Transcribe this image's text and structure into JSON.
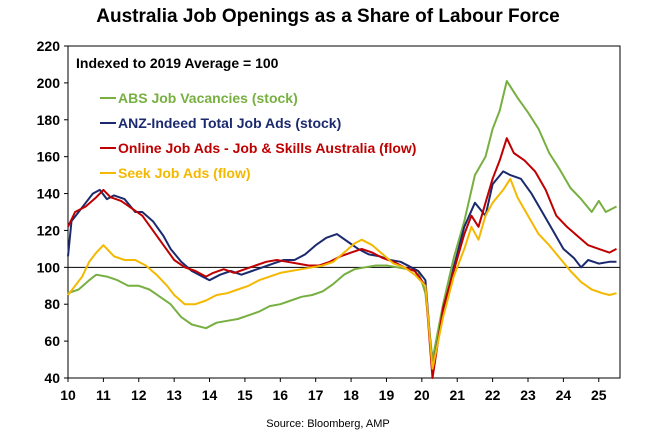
{
  "chart_data": {
    "type": "line",
    "title": "Australia Job Openings as a Share of Labour Force",
    "subtitle": "Indexed to 2019 Average = 100",
    "source": "Source: Bloomberg, AMP",
    "xlim": [
      2010,
      2025.6
    ],
    "ylim": [
      40,
      220
    ],
    "x_ticks": [
      10,
      11,
      12,
      13,
      14,
      15,
      16,
      17,
      18,
      19,
      20,
      21,
      22,
      23,
      24,
      25
    ],
    "y_ticks": [
      40,
      60,
      80,
      100,
      120,
      140,
      160,
      180,
      200,
      220
    ],
    "reference_line": 100,
    "legend_position": "top-left",
    "series": [
      {
        "name": "ABS Job Vacancies (stock)",
        "color": "#77b041",
        "points": [
          [
            2010.0,
            86
          ],
          [
            2010.3,
            88
          ],
          [
            2010.6,
            93
          ],
          [
            2010.8,
            96
          ],
          [
            2011.1,
            95
          ],
          [
            2011.4,
            93
          ],
          [
            2011.7,
            90
          ],
          [
            2012.0,
            90
          ],
          [
            2012.3,
            88
          ],
          [
            2012.6,
            84
          ],
          [
            2012.9,
            80
          ],
          [
            2013.2,
            73
          ],
          [
            2013.5,
            69
          ],
          [
            2013.9,
            67
          ],
          [
            2014.2,
            70
          ],
          [
            2014.5,
            71
          ],
          [
            2014.8,
            72
          ],
          [
            2015.1,
            74
          ],
          [
            2015.4,
            76
          ],
          [
            2015.7,
            79
          ],
          [
            2016.0,
            80
          ],
          [
            2016.3,
            82
          ],
          [
            2016.6,
            84
          ],
          [
            2016.9,
            85
          ],
          [
            2017.2,
            87
          ],
          [
            2017.5,
            91
          ],
          [
            2017.8,
            96
          ],
          [
            2018.1,
            99
          ],
          [
            2018.4,
            100
          ],
          [
            2018.7,
            101
          ],
          [
            2019.0,
            101
          ],
          [
            2019.3,
            100
          ],
          [
            2019.6,
            99
          ],
          [
            2019.9,
            98
          ],
          [
            2020.1,
            86
          ],
          [
            2020.3,
            50
          ],
          [
            2020.6,
            80
          ],
          [
            2020.9,
            105
          ],
          [
            2021.2,
            125
          ],
          [
            2021.5,
            150
          ],
          [
            2021.8,
            160
          ],
          [
            2022.0,
            175
          ],
          [
            2022.2,
            185
          ],
          [
            2022.4,
            201
          ],
          [
            2022.7,
            192
          ],
          [
            2023.0,
            184
          ],
          [
            2023.3,
            175
          ],
          [
            2023.6,
            162
          ],
          [
            2023.9,
            153
          ],
          [
            2024.2,
            143
          ],
          [
            2024.5,
            137
          ],
          [
            2024.8,
            130
          ],
          [
            2025.0,
            136
          ],
          [
            2025.2,
            130
          ],
          [
            2025.5,
            133
          ]
        ]
      },
      {
        "name": "ANZ-Indeed Total Job Ads (stock)",
        "color": "#1b2a6e",
        "points": [
          [
            2010.0,
            106
          ],
          [
            2010.1,
            125
          ],
          [
            2010.3,
            130
          ],
          [
            2010.5,
            135
          ],
          [
            2010.7,
            140
          ],
          [
            2010.9,
            142
          ],
          [
            2011.1,
            137
          ],
          [
            2011.3,
            139
          ],
          [
            2011.6,
            137
          ],
          [
            2011.9,
            130
          ],
          [
            2012.1,
            130
          ],
          [
            2012.4,
            125
          ],
          [
            2012.7,
            117
          ],
          [
            2012.9,
            110
          ],
          [
            2013.2,
            103
          ],
          [
            2013.5,
            98
          ],
          [
            2013.8,
            95
          ],
          [
            2014.0,
            93
          ],
          [
            2014.3,
            96
          ],
          [
            2014.6,
            98
          ],
          [
            2014.9,
            96
          ],
          [
            2015.2,
            98
          ],
          [
            2015.5,
            100
          ],
          [
            2015.8,
            102
          ],
          [
            2016.1,
            104
          ],
          [
            2016.4,
            104
          ],
          [
            2016.7,
            107
          ],
          [
            2017.0,
            112
          ],
          [
            2017.3,
            116
          ],
          [
            2017.6,
            118
          ],
          [
            2017.9,
            114
          ],
          [
            2018.2,
            110
          ],
          [
            2018.5,
            107
          ],
          [
            2018.8,
            106
          ],
          [
            2019.1,
            104
          ],
          [
            2019.4,
            103
          ],
          [
            2019.7,
            100
          ],
          [
            2019.9,
            98
          ],
          [
            2020.1,
            93
          ],
          [
            2020.3,
            45
          ],
          [
            2020.6,
            75
          ],
          [
            2020.9,
            100
          ],
          [
            2021.2,
            122
          ],
          [
            2021.5,
            135
          ],
          [
            2021.8,
            128
          ],
          [
            2022.0,
            145
          ],
          [
            2022.3,
            152
          ],
          [
            2022.5,
            150
          ],
          [
            2022.8,
            148
          ],
          [
            2023.1,
            140
          ],
          [
            2023.4,
            130
          ],
          [
            2023.7,
            120
          ],
          [
            2024.0,
            110
          ],
          [
            2024.3,
            105
          ],
          [
            2024.5,
            100
          ],
          [
            2024.7,
            104
          ],
          [
            2025.0,
            102
          ],
          [
            2025.3,
            103
          ],
          [
            2025.5,
            103
          ]
        ]
      },
      {
        "name": "Online Job Ads - Job & Skills Australia (flow)",
        "color": "#c00000",
        "points": [
          [
            2010.0,
            122
          ],
          [
            2010.2,
            130
          ],
          [
            2010.5,
            133
          ],
          [
            2010.8,
            138
          ],
          [
            2011.0,
            142
          ],
          [
            2011.2,
            138
          ],
          [
            2011.5,
            136
          ],
          [
            2011.8,
            132
          ],
          [
            2012.1,
            128
          ],
          [
            2012.4,
            120
          ],
          [
            2012.7,
            112
          ],
          [
            2013.0,
            104
          ],
          [
            2013.3,
            100
          ],
          [
            2013.6,
            98
          ],
          [
            2013.9,
            95
          ],
          [
            2014.1,
            97
          ],
          [
            2014.4,
            99
          ],
          [
            2014.7,
            97
          ],
          [
            2015.0,
            99
          ],
          [
            2015.3,
            101
          ],
          [
            2015.6,
            103
          ],
          [
            2015.9,
            104
          ],
          [
            2016.2,
            103
          ],
          [
            2016.5,
            102
          ],
          [
            2016.8,
            101
          ],
          [
            2017.1,
            101
          ],
          [
            2017.4,
            103
          ],
          [
            2017.7,
            106
          ],
          [
            2018.0,
            108
          ],
          [
            2018.3,
            110
          ],
          [
            2018.6,
            108
          ],
          [
            2018.9,
            105
          ],
          [
            2019.2,
            103
          ],
          [
            2019.5,
            100
          ],
          [
            2019.8,
            98
          ],
          [
            2020.1,
            90
          ],
          [
            2020.3,
            40
          ],
          [
            2020.6,
            78
          ],
          [
            2020.9,
            98
          ],
          [
            2021.2,
            118
          ],
          [
            2021.4,
            128
          ],
          [
            2021.6,
            122
          ],
          [
            2021.8,
            135
          ],
          [
            2022.0,
            148
          ],
          [
            2022.2,
            158
          ],
          [
            2022.4,
            170
          ],
          [
            2022.6,
            162
          ],
          [
            2022.9,
            158
          ],
          [
            2023.2,
            152
          ],
          [
            2023.5,
            142
          ],
          [
            2023.8,
            128
          ],
          [
            2024.1,
            122
          ],
          [
            2024.4,
            117
          ],
          [
            2024.7,
            112
          ],
          [
            2025.0,
            110
          ],
          [
            2025.3,
            108
          ],
          [
            2025.5,
            110
          ]
        ]
      },
      {
        "name": "Seek Job Ads (flow)",
        "color": "#f5b800",
        "points": [
          [
            2010.0,
            85
          ],
          [
            2010.2,
            90
          ],
          [
            2010.4,
            95
          ],
          [
            2010.6,
            103
          ],
          [
            2010.8,
            108
          ],
          [
            2011.0,
            112
          ],
          [
            2011.3,
            106
          ],
          [
            2011.6,
            104
          ],
          [
            2011.9,
            104
          ],
          [
            2012.2,
            101
          ],
          [
            2012.5,
            96
          ],
          [
            2012.8,
            90
          ],
          [
            2013.0,
            85
          ],
          [
            2013.3,
            80
          ],
          [
            2013.6,
            80
          ],
          [
            2013.9,
            82
          ],
          [
            2014.2,
            85
          ],
          [
            2014.5,
            86
          ],
          [
            2014.8,
            88
          ],
          [
            2015.1,
            90
          ],
          [
            2015.4,
            93
          ],
          [
            2015.7,
            95
          ],
          [
            2016.0,
            97
          ],
          [
            2016.3,
            98
          ],
          [
            2016.6,
            99
          ],
          [
            2016.9,
            100
          ],
          [
            2017.2,
            101
          ],
          [
            2017.5,
            103
          ],
          [
            2017.8,
            108
          ],
          [
            2018.1,
            113
          ],
          [
            2018.3,
            115
          ],
          [
            2018.6,
            112
          ],
          [
            2018.9,
            107
          ],
          [
            2019.2,
            102
          ],
          [
            2019.5,
            100
          ],
          [
            2019.8,
            96
          ],
          [
            2020.1,
            90
          ],
          [
            2020.3,
            45
          ],
          [
            2020.6,
            73
          ],
          [
            2020.9,
            95
          ],
          [
            2021.2,
            110
          ],
          [
            2021.4,
            122
          ],
          [
            2021.6,
            115
          ],
          [
            2021.8,
            128
          ],
          [
            2022.0,
            135
          ],
          [
            2022.3,
            142
          ],
          [
            2022.5,
            148
          ],
          [
            2022.7,
            138
          ],
          [
            2023.0,
            128
          ],
          [
            2023.3,
            118
          ],
          [
            2023.6,
            112
          ],
          [
            2023.9,
            105
          ],
          [
            2024.2,
            98
          ],
          [
            2024.5,
            92
          ],
          [
            2024.8,
            88
          ],
          [
            2025.1,
            86
          ],
          [
            2025.3,
            85
          ],
          [
            2025.5,
            86
          ]
        ]
      }
    ]
  }
}
